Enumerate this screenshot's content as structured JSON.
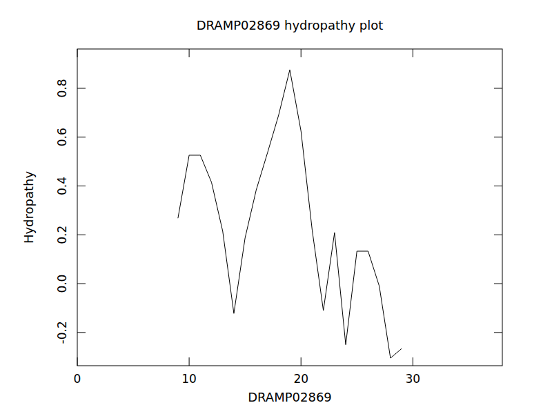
{
  "chart_data": {
    "type": "line",
    "title": "DRAMP02869 hydropathy plot",
    "x_label": "DRAMP02869",
    "y_label": "Hydropathy",
    "x": [
      9,
      10,
      11,
      12,
      13,
      14,
      15,
      16,
      17,
      18,
      19,
      20,
      21,
      22,
      23,
      24,
      25,
      26,
      27,
      28,
      29
    ],
    "values": [
      0.268,
      0.526,
      0.526,
      0.415,
      0.215,
      -0.122,
      0.187,
      0.384,
      0.535,
      0.69,
      0.876,
      0.625,
      0.22,
      -0.11,
      0.209,
      -0.25,
      0.133,
      0.133,
      -0.01,
      -0.305,
      -0.266
    ],
    "color": "#000000",
    "xlim": [
      0,
      38
    ],
    "ylim": [
      -0.336,
      0.961
    ],
    "xticks": [
      0,
      10,
      20,
      30
    ],
    "yticks": [
      {
        "value": -0.2,
        "label": "-0.2"
      },
      {
        "value": 0,
        "label": "0.0"
      },
      {
        "value": 0.2,
        "label": "0.2"
      },
      {
        "value": 0.4,
        "label": "0.4"
      },
      {
        "value": 0.6,
        "label": "0.6"
      },
      {
        "value": 0.8,
        "label": "0.8"
      }
    ],
    "grid": false
  }
}
